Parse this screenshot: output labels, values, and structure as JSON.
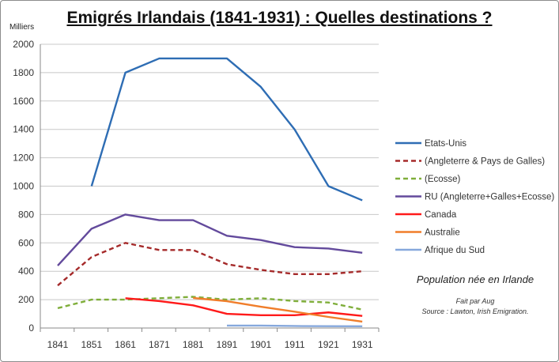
{
  "chart_data": {
    "type": "line",
    "title": "Emigrés Irlandais (1841-1931) : Quelles destinations ?",
    "ylabel": "Milliers",
    "xlabel": "",
    "x": [
      "1841",
      "1851",
      "1861",
      "1871",
      "1881",
      "1891",
      "1901",
      "1911",
      "1921",
      "1931"
    ],
    "yticks": [
      "0",
      "200",
      "400",
      "600",
      "800",
      "1000",
      "1200",
      "1400",
      "1600",
      "1800",
      "2000"
    ],
    "ylim": [
      0,
      2000
    ],
    "grid": true,
    "legend_position": "right",
    "series": [
      {
        "name": "Etats-Unis",
        "color": "#2e6db4",
        "dash": false,
        "values": [
          null,
          1000,
          1800,
          1900,
          1900,
          1900,
          1700,
          1400,
          1000,
          900
        ]
      },
      {
        "name": "(Angleterre & Pays de Galles)",
        "color": "#a52a2a",
        "dash": true,
        "values": [
          300,
          500,
          600,
          550,
          550,
          450,
          410,
          380,
          380,
          400
        ]
      },
      {
        "name": "(Ecosse)",
        "color": "#7fae3a",
        "dash": true,
        "values": [
          140,
          200,
          200,
          210,
          220,
          200,
          210,
          190,
          180,
          130
        ]
      },
      {
        "name": "RU (Angleterre+Galles+Ecosse)",
        "color": "#634a9c",
        "dash": false,
        "values": [
          440,
          700,
          800,
          760,
          760,
          650,
          620,
          570,
          560,
          530
        ]
      },
      {
        "name": "Canada",
        "color": "#ff1a1a",
        "dash": false,
        "values": [
          null,
          null,
          210,
          190,
          160,
          100,
          90,
          90,
          110,
          85
        ]
      },
      {
        "name": "Australie",
        "color": "#f07d2a",
        "dash": false,
        "values": [
          null,
          null,
          null,
          null,
          212,
          189,
          150,
          115,
          78,
          45
        ]
      },
      {
        "name": "Afrique du Sud",
        "color": "#86a8dc",
        "dash": false,
        "values": [
          null,
          null,
          null,
          null,
          null,
          17,
          17,
          14,
          13,
          12
        ]
      }
    ],
    "annotations": {
      "note": "Population née en Irlande",
      "credit_line1": "Fait par Aug",
      "credit_line2": "Source : Lawton, Irish Emigration."
    }
  }
}
